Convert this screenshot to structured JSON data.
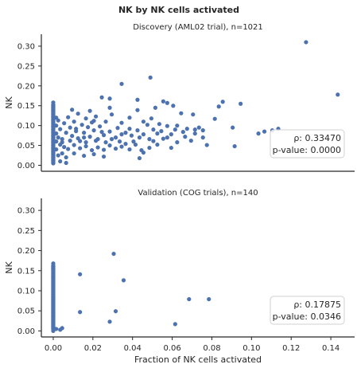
{
  "figure": {
    "suptitle": "NK by NK cells activated",
    "point_color": "#4c72b0"
  },
  "chart_data": [
    {
      "type": "scatter",
      "title": "Discovery (AML02 trial), n=1021",
      "xlabel": "",
      "ylabel": "NK",
      "xlim": [
        -0.006,
        0.152
      ],
      "ylim": [
        -0.015,
        0.33
      ],
      "x_ticks": [
        0.0,
        0.02,
        0.04,
        0.06,
        0.08,
        0.1,
        0.12,
        0.14
      ],
      "x_tick_labels_visible": false,
      "y_ticks": [
        0.0,
        0.05,
        0.1,
        0.15,
        0.2,
        0.25,
        0.3
      ],
      "y_tick_labels": [
        "0.00",
        "0.05",
        "0.10",
        "0.15",
        "0.20",
        "0.25",
        "0.30"
      ],
      "grid": false,
      "stats": {
        "rho_label": "ρ: 0.33470",
        "pvalue_label": "p-value: 0.0000",
        "placement": "middle-right"
      },
      "points": [
        [
          0.1275,
          0.31
        ],
        [
          0.1435,
          0.178
        ],
        [
          0.049,
          0.221
        ],
        [
          0.0345,
          0.205
        ],
        [
          0.0605,
          0.15
        ],
        [
          0.0575,
          0.157
        ],
        [
          0.0555,
          0.161
        ],
        [
          0.0425,
          0.165
        ],
        [
          0.0245,
          0.171
        ],
        [
          0.0285,
          0.168
        ],
        [
          0.0855,
          0.16
        ],
        [
          0.0945,
          0.155
        ],
        [
          0.0835,
          0.148
        ],
        [
          0.0515,
          0.145
        ],
        [
          0.0425,
          0.139
        ],
        [
          0.0285,
          0.145
        ],
        [
          0.0185,
          0.137
        ],
        [
          0.0095,
          0.14
        ],
        [
          0.0645,
          0.131
        ],
        [
          0.0705,
          0.128
        ],
        [
          0.0815,
          0.117
        ],
        [
          0.0905,
          0.095
        ],
        [
          0.1135,
          0.092
        ],
        [
          0.1105,
          0.088
        ],
        [
          0.1065,
          0.085
        ],
        [
          0.1035,
          0.08
        ],
        [
          0.0915,
          0.048
        ],
        [
          0.0775,
          0.051
        ],
        [
          0.0755,
          0.088
        ],
        [
          0.0715,
          0.09
        ],
        [
          0.0755,
          0.07
        ],
        [
          0.0695,
          0.062
        ],
        [
          0.0675,
          0.092
        ],
        [
          0.0655,
          0.084
        ],
        [
          0.0615,
          0.09
        ],
        [
          0.0595,
          0.078
        ],
        [
          0.0575,
          0.07
        ],
        [
          0.0595,
          0.044
        ],
        [
          0.0575,
          0.099
        ],
        [
          0.0545,
          0.086
        ],
        [
          0.0525,
          0.08
        ],
        [
          0.0505,
          0.09
        ],
        [
          0.0485,
          0.066
        ],
        [
          0.0475,
          0.102
        ],
        [
          0.0455,
          0.11
        ],
        [
          0.0435,
          0.07
        ],
        [
          0.0425,
          0.088
        ],
        [
          0.0405,
          0.06
        ],
        [
          0.0385,
          0.092
        ],
        [
          0.0365,
          0.082
        ],
        [
          0.0345,
          0.107
        ],
        [
          0.0325,
          0.094
        ],
        [
          0.0315,
          0.07
        ],
        [
          0.0295,
          0.128
        ],
        [
          0.0285,
          0.085
        ],
        [
          0.0265,
          0.11
        ],
        [
          0.0255,
          0.076
        ],
        [
          0.0235,
          0.098
        ],
        [
          0.0225,
          0.066
        ],
        [
          0.0215,
          0.123
        ],
        [
          0.0205,
          0.088
        ],
        [
          0.0195,
          0.108
        ],
        [
          0.0185,
          0.072
        ],
        [
          0.0175,
          0.096
        ],
        [
          0.0165,
          0.118
        ],
        [
          0.0155,
          0.082
        ],
        [
          0.0145,
          0.102
        ],
        [
          0.0135,
          0.061
        ],
        [
          0.0125,
          0.13
        ],
        [
          0.0115,
          0.086
        ],
        [
          0.0105,
          0.11
        ],
        [
          0.0095,
          0.074
        ],
        [
          0.0085,
          0.095
        ],
        [
          0.0075,
          0.121
        ],
        [
          0.0065,
          0.082
        ],
        [
          0.0055,
          0.106
        ],
        [
          0.0045,
          0.066
        ],
        [
          0.0035,
          0.091
        ],
        [
          0.0025,
          0.113
        ],
        [
          0.0035,
          0.052
        ],
        [
          0.0055,
          0.046
        ],
        [
          0.0075,
          0.041
        ],
        [
          0.0105,
          0.051
        ],
        [
          0.0135,
          0.043
        ],
        [
          0.0165,
          0.048
        ],
        [
          0.0195,
          0.038
        ],
        [
          0.0225,
          0.045
        ],
        [
          0.0255,
          0.039
        ],
        [
          0.0285,
          0.05
        ],
        [
          0.0315,
          0.042
        ],
        [
          0.0345,
          0.047
        ],
        [
          0.0385,
          0.04
        ],
        [
          0.0415,
          0.052
        ],
        [
          0.0445,
          0.038
        ],
        [
          0.0485,
          0.044
        ],
        [
          0.0525,
          0.052
        ],
        [
          0.0435,
          0.018
        ],
        [
          0.0455,
          0.032
        ],
        [
          0.0255,
          0.022
        ],
        [
          0.0205,
          0.028
        ],
        [
          0.0155,
          0.024
        ],
        [
          0.0105,
          0.03
        ],
        [
          0.0065,
          0.02
        ],
        [
          0.0045,
          0.03
        ],
        [
          0.0025,
          0.025
        ],
        [
          0.0035,
          0.01
        ],
        [
          0.0065,
          0.006
        ],
        [
          0.0025,
          0.07
        ],
        [
          0.0045,
          0.058
        ],
        [
          0.0085,
          0.062
        ],
        [
          0.0125,
          0.068
        ],
        [
          0.0165,
          0.058
        ],
        [
          0.0215,
          0.062
        ],
        [
          0.0265,
          0.058
        ],
        [
          0.0335,
          0.06
        ],
        [
          0.0365,
          0.054
        ],
        [
          0.0395,
          0.075
        ],
        [
          0.0455,
          0.078
        ],
        [
          0.0505,
          0.061
        ],
        [
          0.0555,
          0.067
        ],
        [
          0.0625,
          0.058
        ],
        [
          0.0665,
          0.072
        ],
        [
          0.0715,
          0.08
        ],
        [
          0.0345,
          0.078
        ],
        [
          0.0295,
          0.066
        ],
        [
          0.0245,
          0.084
        ],
        [
          0.0115,
          0.092
        ],
        [
          0.0155,
          0.07
        ],
        [
          0.0205,
          0.112
        ],
        [
          0.0385,
          0.12
        ],
        [
          0.0495,
          0.118
        ],
        [
          0.0535,
          0.104
        ],
        [
          0.0625,
          0.1
        ],
        [
          0.0735,
          0.095
        ],
        [
          0.0015,
          0.08
        ],
        [
          0.0015,
          0.1
        ],
        [
          0.0015,
          0.06
        ],
        [
          0.0015,
          0.04
        ],
        [
          0.0015,
          0.12
        ]
      ],
      "zero_x_column": {
        "x": 0.0,
        "y_range": [
          0.0,
          0.158
        ],
        "extra_y": [
          0.005,
          0.012,
          0.02,
          0.028,
          0.035,
          0.043,
          0.05,
          0.058,
          0.066,
          0.074,
          0.082,
          0.09,
          0.098,
          0.106,
          0.114,
          0.122,
          0.13,
          0.138,
          0.146,
          0.152,
          0.158
        ]
      }
    },
    {
      "type": "scatter",
      "title": "Validation (COG trials), n=140",
      "xlabel": "Fraction of NK cells activated",
      "ylabel": "NK",
      "xlim": [
        -0.006,
        0.152
      ],
      "ylim": [
        -0.015,
        0.33
      ],
      "x_ticks": [
        0.0,
        0.02,
        0.04,
        0.06,
        0.08,
        0.1,
        0.12,
        0.14
      ],
      "x_tick_labels": [
        "0.00",
        "0.02",
        "0.04",
        "0.06",
        "0.08",
        "0.10",
        "0.12",
        "0.14"
      ],
      "y_ticks": [
        0.0,
        0.05,
        0.1,
        0.15,
        0.2,
        0.25,
        0.3
      ],
      "y_tick_labels": [
        "0.00",
        "0.05",
        "0.10",
        "0.15",
        "0.20",
        "0.25",
        "0.30"
      ],
      "grid": false,
      "stats": {
        "rho_label": "ρ: 0.17875",
        "pvalue_label": "p-value: 0.0346",
        "placement": "middle-right"
      },
      "points": [
        [
          0.0305,
          0.192
        ],
        [
          0.0135,
          0.141
        ],
        [
          0.0355,
          0.126
        ],
        [
          0.0685,
          0.079
        ],
        [
          0.0785,
          0.079
        ],
        [
          0.0135,
          0.047
        ],
        [
          0.0315,
          0.049
        ],
        [
          0.0285,
          0.023
        ],
        [
          0.0615,
          0.017
        ],
        [
          0.0045,
          0.007
        ],
        [
          0.0035,
          0.003
        ],
        [
          0.0015,
          0.005
        ]
      ],
      "zero_x_column": {
        "x": 0.0,
        "y_range": [
          0.0,
          0.168
        ],
        "extra_y": [
          0.0,
          0.005,
          0.01,
          0.015,
          0.02,
          0.025,
          0.03,
          0.035,
          0.04,
          0.045,
          0.05,
          0.055,
          0.06,
          0.065,
          0.07,
          0.075,
          0.08,
          0.085,
          0.09,
          0.11,
          0.133,
          0.156,
          0.161,
          0.168
        ]
      }
    }
  ]
}
